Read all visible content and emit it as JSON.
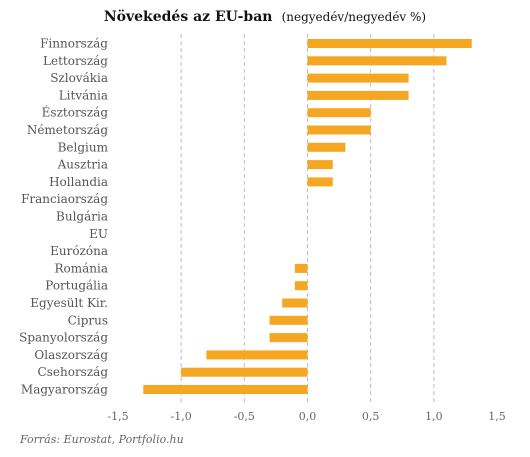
{
  "chart_data": {
    "type": "bar",
    "orientation": "horizontal",
    "title": "Növekedés az EU-ban",
    "subtitle": "(negyedév/negyedév %)",
    "categories": [
      "Finnország",
      "Lettország",
      "Szlovákia",
      "Litvánia",
      "Észtország",
      "Németország",
      "Belgium",
      "Ausztria",
      "Hollandia",
      "Franciaország",
      "Bulgária",
      "EU",
      "Eurózóna",
      "Románia",
      "Portugália",
      "Egyesült Kir.",
      "Ciprus",
      "Spanyolország",
      "Olaszország",
      "Csehország",
      "Magyarország"
    ],
    "values": [
      1.3,
      1.1,
      0.8,
      0.8,
      0.5,
      0.5,
      0.3,
      0.2,
      0.2,
      0.0,
      0.0,
      0.0,
      0.0,
      -0.1,
      -0.1,
      -0.2,
      -0.3,
      -0.3,
      -0.8,
      -1.0,
      -1.3
    ],
    "xlim": [
      -1.5,
      1.5
    ],
    "xticks": [
      -1.5,
      -1.0,
      -0.5,
      0.0,
      0.5,
      1.0,
      1.5
    ],
    "xtick_labels": [
      "-1,5",
      "-1,0",
      "-0,5",
      "0,0",
      "0,5",
      "1,0",
      "1,5"
    ],
    "grid": "vertical dashed",
    "bar_color": "#F5A623",
    "source": "Forrás: Eurostat, Portfolio.hu"
  }
}
